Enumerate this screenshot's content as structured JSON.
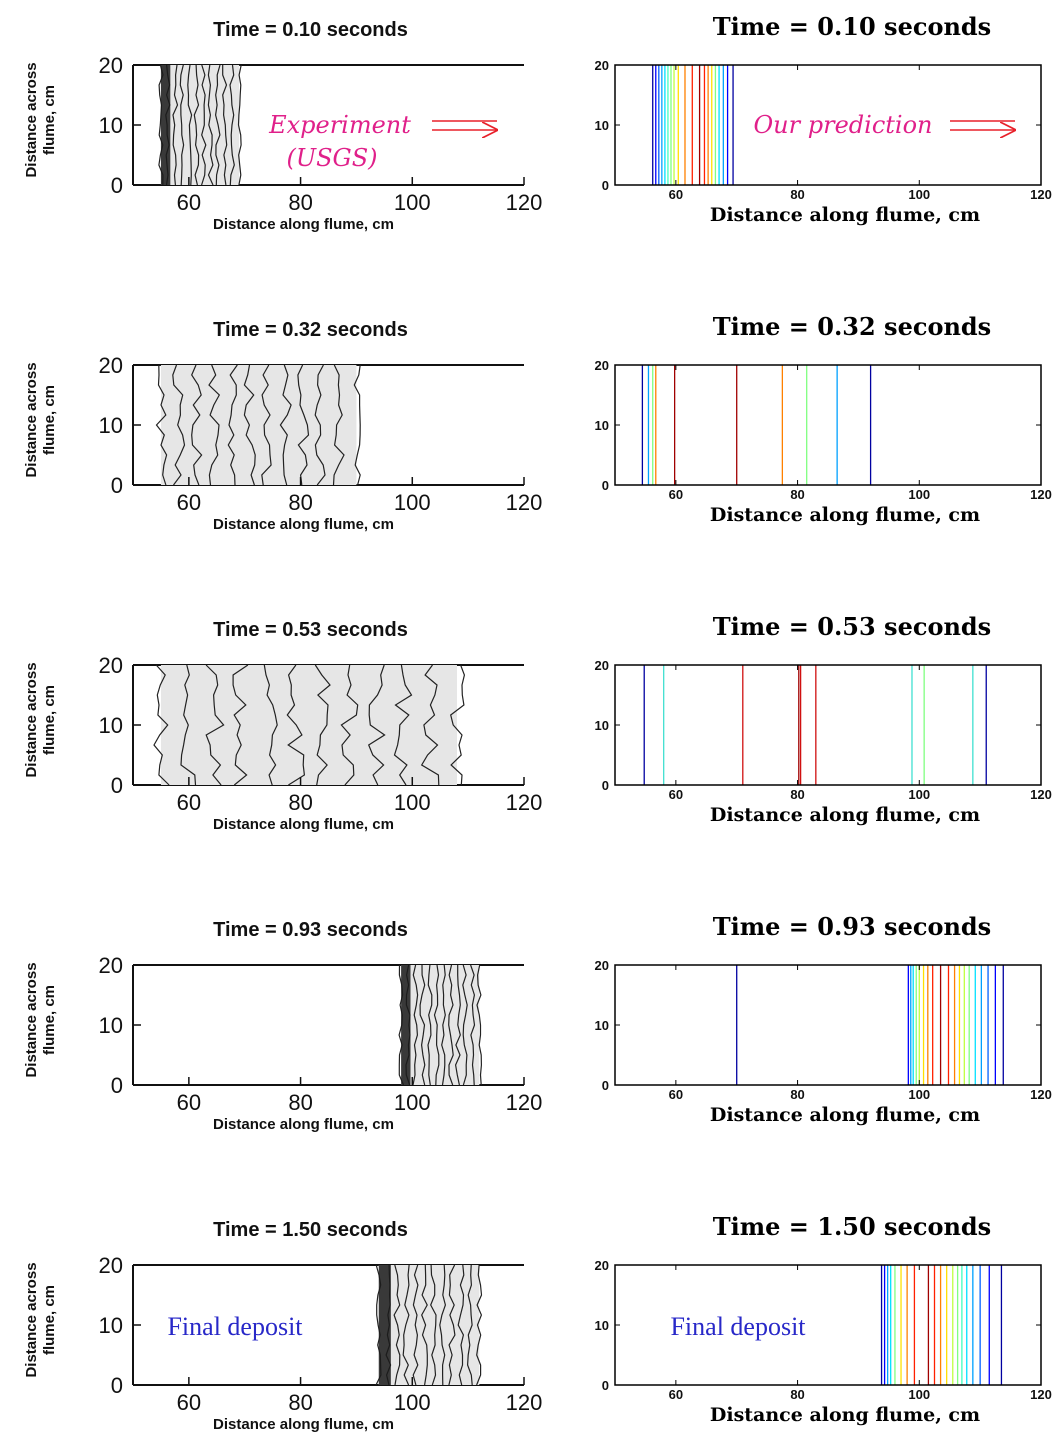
{
  "chart_data": [
    {
      "type": "contour",
      "panel": "experiment",
      "title": "Time = 0.10 seconds",
      "xlabel": "Distance along flume, cm",
      "ylabel_lines": [
        "Distance across",
        "flume, cm"
      ],
      "xlim": [
        50,
        120
      ],
      "ylim": [
        0,
        20
      ],
      "xticks": [
        "60",
        "80",
        "100",
        "120"
      ],
      "yticks": [
        "0",
        "10",
        "20"
      ],
      "front_extent": [
        55,
        69
      ],
      "annotation": [
        "Experiment",
        "(USGS)"
      ]
    },
    {
      "type": "line",
      "panel": "prediction",
      "title": "Time = 0.10 seconds",
      "xlabel": "Distance along flume, cm",
      "xlim": [
        50,
        120
      ],
      "ylim": [
        0,
        20
      ],
      "xticks": [
        "60",
        "80",
        "100",
        "120"
      ],
      "yticks": [
        "0",
        "10",
        "20"
      ],
      "contour_x": [
        56.2,
        56.7,
        57.2,
        57.7,
        58.2,
        58.7,
        59.2,
        59.7,
        60.4,
        61.5,
        62.7,
        63.9,
        64.7,
        65.3,
        65.9,
        66.5,
        67.1,
        67.8,
        68.5,
        69.4
      ],
      "contour_colors": [
        "#0000a0",
        "#0000ff",
        "#0060ff",
        "#00a0ff",
        "#00e0ff",
        "#40ffc0",
        "#80ff80",
        "#c0ff40",
        "#ffe000",
        "#ff8000",
        "#ff2000",
        "#a00000",
        "#ff2000",
        "#ff8000",
        "#ffe000",
        "#80ff80",
        "#00e0ff",
        "#00a0ff",
        "#0000ff",
        "#0000a0"
      ],
      "annotation": "Our prediction"
    },
    {
      "type": "contour",
      "panel": "experiment",
      "title": "Time = 0.32 seconds",
      "xlabel": "Distance along flume, cm",
      "ylabel_lines": [
        "Distance across",
        "flume, cm"
      ],
      "xlim": [
        50,
        120
      ],
      "ylim": [
        0,
        20
      ],
      "xticks": [
        "60",
        "80",
        "100",
        "120"
      ],
      "yticks": [
        "0",
        "10",
        "20"
      ],
      "front_extent": [
        55,
        90
      ]
    },
    {
      "type": "line",
      "panel": "prediction",
      "title": "Time = 0.32 seconds",
      "xlabel": "Distance along flume, cm",
      "xlim": [
        50,
        120
      ],
      "ylim": [
        0,
        20
      ],
      "xticks": [
        "60",
        "80",
        "100",
        "120"
      ],
      "yticks": [
        "0",
        "10",
        "20"
      ],
      "contour_x": [
        54.5,
        55.5,
        56.2,
        56.7,
        59.8,
        70.0,
        77.5,
        81.5,
        86.5,
        92.0
      ],
      "contour_colors": [
        "#0000a0",
        "#00a0ff",
        "#80ff80",
        "#ff8000",
        "#a00000",
        "#a00000",
        "#ff8000",
        "#80ff80",
        "#00a0ff",
        "#0000a0"
      ]
    },
    {
      "type": "contour",
      "panel": "experiment",
      "title": "Time = 0.53 seconds",
      "xlabel": "Distance along flume, cm",
      "ylabel_lines": [
        "Distance across",
        "flume, cm"
      ],
      "xlim": [
        50,
        120
      ],
      "ylim": [
        0,
        20
      ],
      "xticks": [
        "60",
        "80",
        "100",
        "120"
      ],
      "yticks": [
        "0",
        "10",
        "20"
      ],
      "front_extent": [
        55,
        108
      ]
    },
    {
      "type": "line",
      "panel": "prediction",
      "title": "Time = 0.53 seconds",
      "xlabel": "Distance along flume, cm",
      "xlim": [
        50,
        120
      ],
      "ylim": [
        0,
        20
      ],
      "xticks": [
        "60",
        "80",
        "100",
        "120"
      ],
      "yticks": [
        "0",
        "10",
        "20"
      ],
      "contour_x": [
        54.8,
        58.0,
        71.0,
        80.2,
        80.5,
        83.0,
        98.8,
        100.8,
        108.8,
        111.0
      ],
      "contour_colors": [
        "#0000a0",
        "#40e0d0",
        "#d01010",
        "#a00000",
        "#d01010",
        "#d01010",
        "#40e0d0",
        "#80ff80",
        "#40e0d0",
        "#0000a0"
      ]
    },
    {
      "type": "contour",
      "panel": "experiment",
      "title": "Time = 0.93 seconds",
      "xlabel": "Distance along flume, cm",
      "ylabel_lines": [
        "Distance across",
        "flume, cm"
      ],
      "xlim": [
        50,
        120
      ],
      "ylim": [
        0,
        20
      ],
      "xticks": [
        "60",
        "80",
        "100",
        "120"
      ],
      "yticks": [
        "0",
        "10",
        "20"
      ],
      "front_extent": [
        98,
        112
      ]
    },
    {
      "type": "line",
      "panel": "prediction",
      "title": "Time = 0.93 seconds",
      "xlabel": "Distance along flume, cm",
      "xlim": [
        50,
        120
      ],
      "ylim": [
        0,
        20
      ],
      "xticks": [
        "60",
        "80",
        "100",
        "120"
      ],
      "yticks": [
        "0",
        "10",
        "20"
      ],
      "contour_x": [
        70.0,
        98.2,
        98.6,
        99.0,
        99.5,
        100.0,
        100.7,
        101.4,
        102.2,
        103.5,
        104.8,
        105.8,
        106.6,
        107.4,
        108.2,
        109.2,
        110.2,
        111.3,
        112.5,
        113.8
      ],
      "contour_colors": [
        "#0000a0",
        "#0000ff",
        "#00a0ff",
        "#00e0ff",
        "#80ff80",
        "#c0ff40",
        "#ffe000",
        "#ff8000",
        "#ff2000",
        "#a00000",
        "#ff2000",
        "#ff8000",
        "#ffe000",
        "#c0ff40",
        "#80ff80",
        "#00e0ff",
        "#00a0ff",
        "#0060ff",
        "#0000ff",
        "#0000a0"
      ]
    },
    {
      "type": "contour",
      "panel": "experiment",
      "title": "Time = 1.50 seconds",
      "xlabel": "Distance along flume, cm",
      "ylabel_lines": [
        "Distance across",
        "flume, cm"
      ],
      "xlim": [
        50,
        120
      ],
      "ylim": [
        0,
        20
      ],
      "xticks": [
        "60",
        "80",
        "100",
        "120"
      ],
      "yticks": [
        "0",
        "10",
        "20"
      ],
      "front_extent": [
        94,
        112
      ],
      "annotation": "Final deposit"
    },
    {
      "type": "line",
      "panel": "prediction",
      "title": "Time = 1.50 seconds",
      "xlabel": "Distance along flume, cm",
      "xlim": [
        50,
        120
      ],
      "ylim": [
        0,
        20
      ],
      "xticks": [
        "60",
        "80",
        "100",
        "120"
      ],
      "yticks": [
        "0",
        "10",
        "20"
      ],
      "contour_x": [
        93.8,
        94.3,
        94.8,
        95.3,
        96.0,
        97.0,
        98.0,
        99.2,
        101.5,
        102.5,
        103.5,
        104.5,
        105.5,
        106.3,
        107.0,
        107.8,
        108.8,
        110.0,
        111.5,
        113.5
      ],
      "contour_colors": [
        "#0000a0",
        "#0000ff",
        "#00a0ff",
        "#00e0ff",
        "#80ff80",
        "#ffe000",
        "#ff8000",
        "#ff2000",
        "#a00000",
        "#ff2000",
        "#ff8000",
        "#ffe000",
        "#c0ff40",
        "#80ff80",
        "#40ffc0",
        "#00e0ff",
        "#00a0ff",
        "#0060ff",
        "#0000ff",
        "#0000a0"
      ],
      "annotation": "Final deposit"
    }
  ]
}
